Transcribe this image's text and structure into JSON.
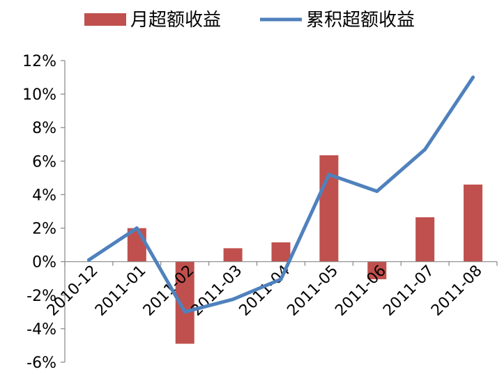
{
  "chart_data": {
    "type": "bar",
    "title": "",
    "xlabel": "",
    "ylabel": "",
    "categories": [
      "2010-12",
      "2011-01",
      "2011-02",
      "2011-03",
      "2011-04",
      "2011-05",
      "2011-06",
      "2011-07",
      "2011-08"
    ],
    "ylim": [
      -6,
      12
    ],
    "y_ticks": [
      "-6%",
      "-4%",
      "-2%",
      "0%",
      "2%",
      "4%",
      "6%",
      "8%",
      "10%",
      "12%"
    ],
    "grid": false,
    "legend_position": "top",
    "series": [
      {
        "name": "月超额收益",
        "type": "bar",
        "color": "#C0504D",
        "values": [
          null,
          2.0,
          -4.9,
          0.8,
          1.15,
          6.35,
          -1.05,
          2.65,
          4.6
        ]
      },
      {
        "name": "累积超额收益",
        "type": "line",
        "color": "#4F81BD",
        "values": [
          0.1,
          2.0,
          -3.0,
          -2.25,
          -1.05,
          5.2,
          4.2,
          6.7,
          11.0
        ]
      }
    ]
  }
}
